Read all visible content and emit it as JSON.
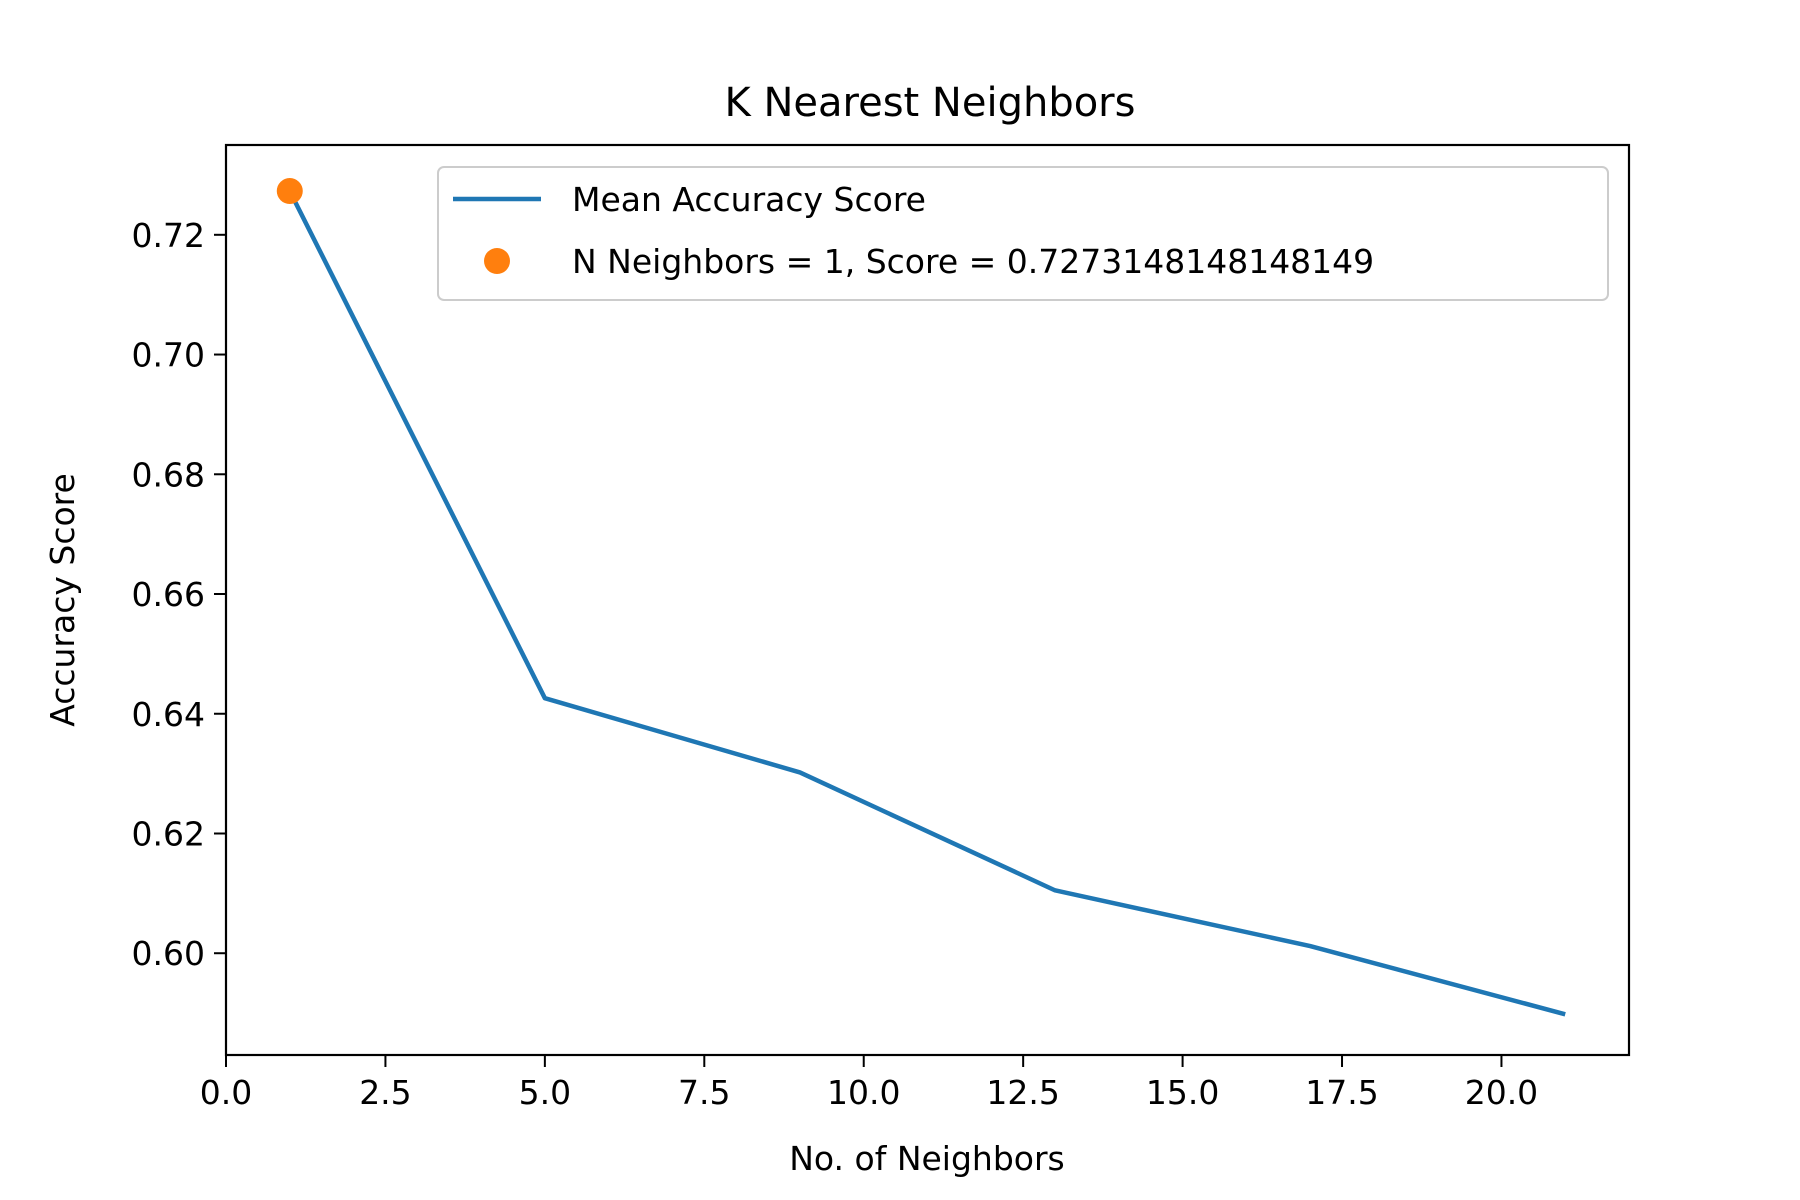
{
  "chart_data": {
    "type": "line",
    "title": "K Nearest Neighbors",
    "xlabel": "No. of Neighbors",
    "ylabel": "Accuracy Score",
    "xlim": [
      0,
      22
    ],
    "ylim": [
      0.583,
      0.735
    ],
    "xticks": [
      0,
      2.5,
      5,
      7.5,
      10,
      12.5,
      15,
      17.5,
      20
    ],
    "xtick_labels": [
      "0.0",
      "2.5",
      "5.0",
      "7.5",
      "10.0",
      "12.5",
      "15.0",
      "17.5",
      "20.0"
    ],
    "yticks": [
      0.6,
      0.62,
      0.64,
      0.66,
      0.68,
      0.7,
      0.72
    ],
    "ytick_labels": [
      "0.60",
      "0.62",
      "0.64",
      "0.66",
      "0.68",
      "0.70",
      "0.72"
    ],
    "grid": false,
    "legend_position": "top-right",
    "series": [
      {
        "name": "Mean Accuracy Score",
        "kind": "line",
        "color": "#1f77b4",
        "x": [
          1,
          5,
          9,
          13,
          17,
          21
        ],
        "y": [
          0.7273,
          0.6426,
          0.6302,
          0.6105,
          0.6012,
          0.5898
        ]
      },
      {
        "name": "N Neighbors = 1, Score = 0.7273148148148149",
        "kind": "point",
        "color": "#ff7f0e",
        "x": [
          1
        ],
        "y": [
          0.7273148148148149
        ]
      }
    ]
  }
}
